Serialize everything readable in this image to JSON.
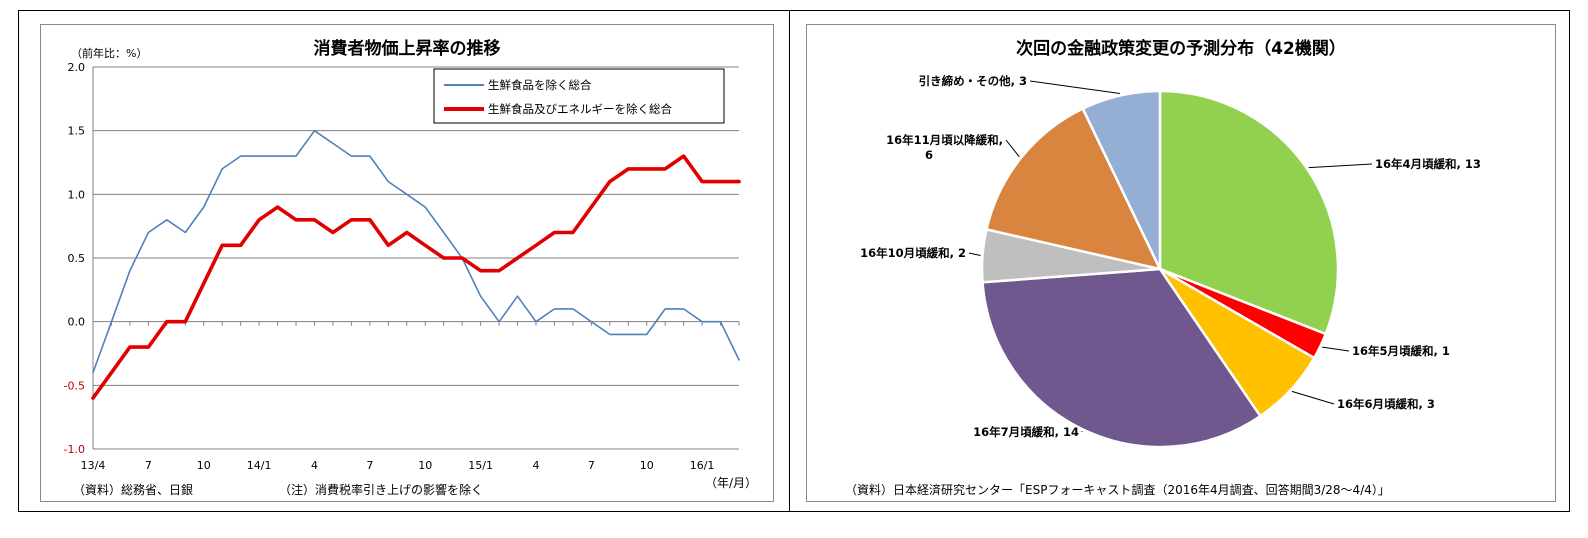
{
  "chart_data": [
    {
      "type": "line",
      "title": "消費者物価上昇率の推移",
      "ylabel": "（前年比：%）",
      "xlabel": "（年/月）",
      "ylim": [
        -1.0,
        2.0
      ],
      "yticks": [
        "2.0",
        "1.5",
        "1.0",
        "0.5",
        "0.0",
        "-0.5",
        "-1.0"
      ],
      "grid": true,
      "legend_position": "top-right",
      "x": [
        "13/4",
        "13/5",
        "13/6",
        "13/7",
        "13/8",
        "13/9",
        "13/10",
        "13/11",
        "13/12",
        "14/1",
        "14/2",
        "14/3",
        "14/4",
        "14/5",
        "14/6",
        "14/7",
        "14/8",
        "14/9",
        "14/10",
        "14/11",
        "14/12",
        "15/1",
        "15/2",
        "15/3",
        "15/4",
        "15/5",
        "15/6",
        "15/7",
        "15/8",
        "15/9",
        "15/10",
        "15/11",
        "15/12",
        "16/1",
        "16/2",
        "16/3"
      ],
      "xtick_labels": [
        "13/4",
        "7",
        "10",
        "14/1",
        "4",
        "7",
        "10",
        "15/1",
        "4",
        "7",
        "10",
        "16/1"
      ],
      "series": [
        {
          "name": "生鮮食品を除く総合",
          "color": "#4f81bd",
          "values": [
            -0.4,
            0.0,
            0.4,
            0.7,
            0.8,
            0.7,
            0.9,
            1.2,
            1.3,
            1.3,
            1.3,
            1.3,
            1.5,
            1.4,
            1.3,
            1.3,
            1.1,
            1.0,
            0.9,
            0.7,
            0.5,
            0.2,
            0.0,
            0.2,
            0.0,
            0.1,
            0.1,
            0.0,
            -0.1,
            -0.1,
            -0.1,
            0.1,
            0.1,
            0.0,
            0.0,
            -0.3
          ]
        },
        {
          "name": "生鮮食品及びエネルギーを除く総合",
          "color": "#e00000",
          "values": [
            -0.6,
            -0.4,
            -0.2,
            -0.2,
            0.0,
            0.0,
            0.3,
            0.6,
            0.6,
            0.8,
            0.9,
            0.8,
            0.8,
            0.7,
            0.8,
            0.8,
            0.6,
            0.7,
            0.6,
            0.5,
            0.5,
            0.4,
            0.4,
            0.5,
            0.6,
            0.7,
            0.7,
            0.9,
            1.1,
            1.2,
            1.2,
            1.2,
            1.3,
            1.1,
            1.1,
            1.1
          ]
        }
      ],
      "notes": [
        "（資料）総務省、日銀",
        "（注）消費税率引き上げの影響を除く"
      ]
    },
    {
      "type": "pie",
      "title": "次回の金融政策変更の予測分布（42機関）",
      "slices": [
        {
          "label": "16年4月頃緩和, 13",
          "value": 13,
          "color": "#92d050"
        },
        {
          "label": "16年5月頃緩和, 1",
          "value": 1,
          "color": "#ff0000"
        },
        {
          "label": "16年6月頃緩和, 3",
          "value": 3,
          "color": "#ffc000"
        },
        {
          "label": "16年7月頃緩和, 14",
          "value": 14,
          "color": "#70588f"
        },
        {
          "label": "16年10月頃緩和, 2",
          "value": 2,
          "color": "#bfbfbf"
        },
        {
          "label": "16年11月頃以降緩和, 6",
          "value": 6,
          "color": "#d9843f"
        },
        {
          "label": "引き締め・その他, 3",
          "value": 3,
          "color": "#95aed4"
        }
      ],
      "note": "（資料）日本経済研究センター「ESPフォーキャスト調査（2016年4月調査、回答期間3/28～4/4）」"
    }
  ]
}
